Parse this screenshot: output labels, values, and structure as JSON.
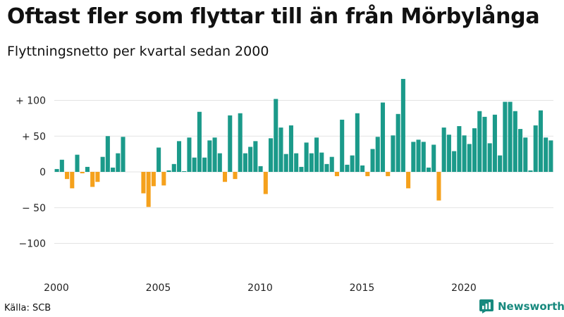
{
  "page": {
    "title": "Oftast fler som flyttar till än från Mörbylånga",
    "subtitle": "Flyttningsnetto per kvartal sedan 2000",
    "source": "Källa: SCB",
    "brand": "Newsworthy"
  },
  "colors": {
    "positive": "#1b9a8a",
    "negative": "#f5a11c",
    "grid": "#e3e3e3",
    "brand": "#17897e"
  },
  "chart_data": {
    "type": "bar",
    "title": "Oftast fler som flyttar till än från Mörbylånga",
    "subtitle": "Flyttningsnetto per kvartal sedan 2000",
    "x_start": "2000 Q1",
    "x_end": "2024 Q2",
    "x_ticks": [
      2000,
      2005,
      2010,
      2015,
      2020
    ],
    "x_tick_labels": [
      "2000",
      "2005",
      "2010",
      "2015",
      "2020"
    ],
    "y_ticks": [
      100,
      50,
      0,
      -50,
      -100
    ],
    "y_tick_labels": [
      "+ 100",
      "+  50",
      "0",
      "− 50",
      "−100"
    ],
    "ylim": [
      -110,
      135
    ],
    "grid": true,
    "values": [
      4,
      17,
      -10,
      -23,
      24,
      -2,
      7,
      -21,
      -14,
      21,
      50,
      6,
      26,
      49,
      0,
      0,
      0,
      -30,
      -49,
      -20,
      34,
      -19,
      2,
      11,
      43,
      1,
      48,
      20,
      84,
      20,
      44,
      48,
      26,
      -14,
      79,
      -10,
      82,
      26,
      35,
      43,
      8,
      -31,
      47,
      102,
      62,
      25,
      65,
      26,
      7,
      41,
      26,
      48,
      27,
      11,
      21,
      -6,
      73,
      10,
      23,
      82,
      9,
      -6,
      32,
      49,
      97,
      -6,
      51,
      81,
      130,
      -23,
      42,
      45,
      42,
      6,
      38,
      -40,
      62,
      52,
      29,
      64,
      51,
      39,
      61,
      85,
      77,
      40,
      80,
      23,
      98,
      98,
      85,
      60,
      48,
      2,
      65,
      86,
      48,
      44
    ]
  }
}
